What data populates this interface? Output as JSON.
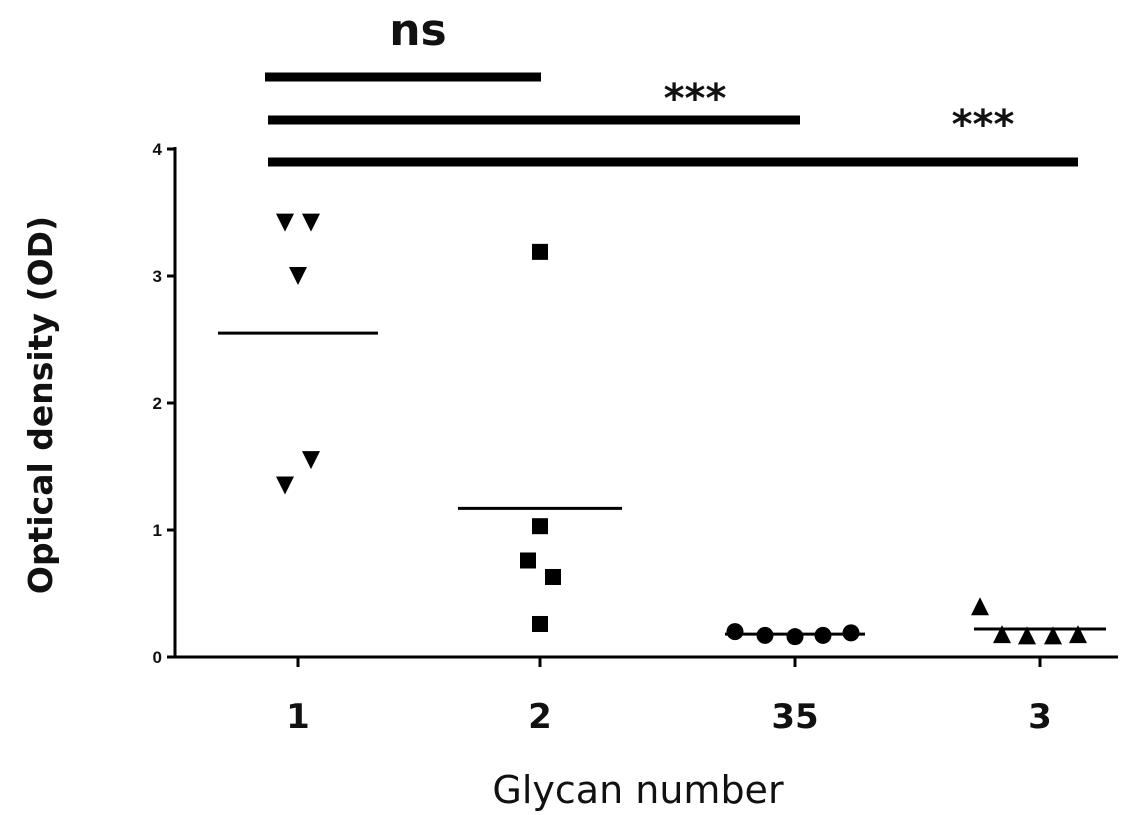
{
  "chart_data": {
    "type": "scatter",
    "title": "",
    "xlabel": "Glycan number",
    "ylabel": "Optical density (OD)",
    "ylim": [
      0,
      4
    ],
    "yticks": [
      "0",
      "1",
      "2",
      "3",
      "4"
    ],
    "categories": [
      "1",
      "2",
      "35",
      "3"
    ],
    "grid": false,
    "legend": "none",
    "series": [
      {
        "category": "1",
        "marker": "triangle-down",
        "mean": 2.55,
        "points": [
          3.42,
          3.42,
          3.0,
          1.55,
          1.35
        ]
      },
      {
        "category": "2",
        "marker": "square",
        "mean": 1.17,
        "points": [
          3.19,
          1.03,
          0.76,
          0.63,
          0.26
        ]
      },
      {
        "category": "35",
        "marker": "circle",
        "mean": 0.18,
        "points": [
          0.2,
          0.17,
          0.16,
          0.17,
          0.19
        ]
      },
      {
        "category": "3",
        "marker": "triangle-up",
        "mean": 0.22,
        "points": [
          0.4,
          0.18,
          0.17,
          0.17,
          0.18
        ]
      }
    ],
    "comparisons": [
      {
        "from": "1",
        "to": "2",
        "label": "ns"
      },
      {
        "from": "1",
        "to": "35",
        "label": "***"
      },
      {
        "from": "1",
        "to": "3",
        "label": "***"
      }
    ],
    "colors": {
      "ink": "#000000",
      "background": "#ffffff"
    }
  }
}
